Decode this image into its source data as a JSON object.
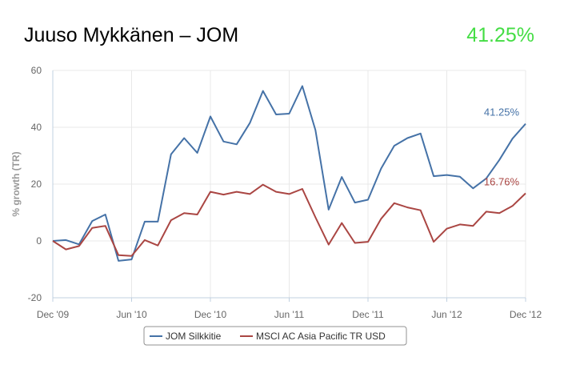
{
  "header": {
    "title": "Juuso Mykkänen – JOM",
    "value": "41.25%",
    "value_color": "#44dd44"
  },
  "chart_data": {
    "type": "line",
    "title": "Juuso Mykkänen – JOM",
    "xlabel": "",
    "ylabel": "% growth (TR)",
    "ylim": [
      -20,
      60
    ],
    "yticks": [
      "60",
      "40",
      "20",
      "0",
      "-20"
    ],
    "xticks": [
      "Dec '09",
      "Jun '10",
      "Dec '10",
      "Jun '11",
      "Dec '11",
      "Jun '12",
      "Dec '12"
    ],
    "x": [
      "2009-12",
      "2010-01",
      "2010-02",
      "2010-03",
      "2010-04",
      "2010-05",
      "2010-06",
      "2010-07",
      "2010-08",
      "2010-09",
      "2010-10",
      "2010-11",
      "2010-12",
      "2011-01",
      "2011-02",
      "2011-03",
      "2011-04",
      "2011-05",
      "2011-06",
      "2011-07",
      "2011-08",
      "2011-09",
      "2011-10",
      "2011-11",
      "2011-12",
      "2012-01",
      "2012-02",
      "2012-03",
      "2012-04",
      "2012-05",
      "2012-06",
      "2012-07",
      "2012-08",
      "2012-09",
      "2012-10",
      "2012-11",
      "2012-12"
    ],
    "series": [
      {
        "name": "JOM Silkkitie",
        "color": "#4572a7",
        "end_label": "41.25%",
        "values": [
          0.0,
          0.3,
          -1.2,
          7.0,
          9.3,
          -7.0,
          -6.5,
          6.8,
          6.8,
          30.5,
          36.2,
          31.0,
          43.8,
          35.0,
          34.0,
          41.5,
          52.8,
          44.5,
          44.8,
          54.5,
          39.0,
          11.0,
          22.5,
          13.5,
          14.5,
          25.5,
          33.5,
          36.2,
          37.8,
          22.8,
          23.2,
          22.6,
          18.5,
          22.0,
          28.5,
          36.0,
          41.25
        ]
      },
      {
        "name": "MSCI AC Asia Pacific TR USD",
        "color": "#aa4643",
        "end_label": "16.76%",
        "values": [
          0.0,
          -3.0,
          -1.8,
          4.6,
          5.3,
          -5.0,
          -5.3,
          0.3,
          -1.6,
          7.3,
          9.8,
          9.3,
          17.3,
          16.3,
          17.3,
          16.5,
          19.8,
          17.3,
          16.5,
          18.3,
          8.3,
          -1.3,
          6.3,
          -0.7,
          -0.3,
          7.8,
          13.3,
          11.8,
          10.8,
          -0.3,
          4.3,
          5.8,
          5.3,
          10.3,
          9.8,
          12.3,
          16.76
        ]
      }
    ],
    "grid": true,
    "legend": "bottom-center"
  }
}
